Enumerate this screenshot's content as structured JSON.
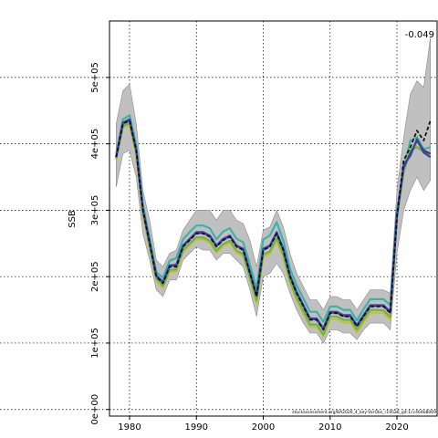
{
  "chart_data": {
    "type": "line",
    "title": "",
    "xlabel": "",
    "ylabel": "SSB",
    "xlim": [
      1977,
      2026
    ],
    "ylim": [
      -10000,
      585000
    ],
    "x_ticks": [
      1980,
      1990,
      2000,
      2010,
      2020
    ],
    "x_tick_labels": [
      "1980",
      "1990",
      "2000",
      "2010",
      "2020"
    ],
    "y_ticks": [
      0,
      100000,
      200000,
      300000,
      400000,
      500000
    ],
    "y_tick_labels": [
      "0e+00",
      "1e+05",
      "2e+05",
      "3e+05",
      "4e+05",
      "5e+05"
    ],
    "grid": true,
    "annotation": "-0.049",
    "footnote": "stockassessment.org/BA2026_4_key-VarObs_r19526_git:1cc464b8069",
    "colors": {
      "band": "#c0c0c0",
      "band_edge": "#8c8c8c",
      "teal": "#3db3a8",
      "yellow": "#c5c03a",
      "green": "#6fb348",
      "purple": "#4d2d7c",
      "blue": "#3a43a8",
      "black": "#111111",
      "grid": "#000000"
    },
    "years": [
      1978,
      1979,
      1980,
      1981,
      1982,
      1983,
      1984,
      1985,
      1986,
      1987,
      1988,
      1989,
      1990,
      1991,
      1992,
      1993,
      1994,
      1995,
      1996,
      1997,
      1998,
      1999,
      2000,
      2001,
      2002,
      2003,
      2004,
      2005,
      2006,
      2007,
      2008,
      2009,
      2010,
      2011,
      2012,
      2013,
      2014,
      2015,
      2016,
      2017,
      2018,
      2019,
      2020,
      2021,
      2022,
      2023,
      2024,
      2025
    ],
    "ci_upper": [
      430000,
      480000,
      490000,
      430000,
      330000,
      285000,
      225000,
      215000,
      235000,
      240000,
      270000,
      285000,
      300000,
      300000,
      300000,
      285000,
      300000,
      300000,
      285000,
      280000,
      255000,
      215000,
      270000,
      275000,
      300000,
      275000,
      235000,
      205000,
      185000,
      165000,
      165000,
      150000,
      170000,
      170000,
      165000,
      165000,
      150000,
      165000,
      180000,
      180000,
      180000,
      175000,
      330000,
      410000,
      475000,
      495000,
      485000,
      560000
    ],
    "ci_lower": [
      335000,
      385000,
      390000,
      350000,
      265000,
      225000,
      180000,
      170000,
      195000,
      195000,
      225000,
      235000,
      245000,
      240000,
      240000,
      225000,
      235000,
      235000,
      225000,
      215000,
      180000,
      140000,
      200000,
      205000,
      220000,
      205000,
      175000,
      150000,
      130000,
      115000,
      115000,
      100000,
      120000,
      120000,
      115000,
      115000,
      105000,
      120000,
      130000,
      130000,
      130000,
      120000,
      235000,
      300000,
      330000,
      350000,
      330000,
      345000
    ],
    "series": [
      {
        "key": "black",
        "color": "#111111",
        "dashed": true,
        "values": [
          380000,
          430000,
          435000,
          390000,
          300000,
          250000,
          200000,
          190000,
          215000,
          215000,
          245000,
          255000,
          265000,
          265000,
          260000,
          245000,
          255000,
          260000,
          245000,
          240000,
          205000,
          170000,
          240000,
          245000,
          265000,
          240000,
          200000,
          175000,
          155000,
          135000,
          135000,
          120000,
          145000,
          145000,
          140000,
          140000,
          125000,
          140000,
          155000,
          155000,
          155000,
          145000,
          290000,
          375000,
          395000,
          420000,
          405000,
          435000
        ]
      },
      {
        "key": "teal",
        "color": "#3db3a8",
        "dashed": false,
        "values": [
          385000,
          437000,
          443000,
          398000,
          308000,
          258000,
          207000,
          198000,
          224000,
          228000,
          256000,
          267000,
          277000,
          277000,
          273000,
          256000,
          268000,
          273000,
          257000,
          252000,
          218000,
          182000,
          256000,
          262000,
          282000,
          254000,
          212000,
          187000,
          167000,
          147000,
          147000,
          132000,
          155000,
          155000,
          150000,
          150000,
          134000,
          151000,
          166000,
          166000,
          166000,
          157000,
          300000,
          362000,
          405000,
          410000,
          392000,
          395000
        ]
      },
      {
        "key": "yellow",
        "color": "#c5c03a",
        "dashed": false,
        "values": [
          376000,
          425000,
          428000,
          383000,
          293000,
          243000,
          194000,
          183000,
          207000,
          208000,
          237000,
          247000,
          256000,
          256000,
          251000,
          236000,
          246000,
          251000,
          236000,
          231000,
          196000,
          160000,
          230000,
          234000,
          254000,
          229000,
          190000,
          164000,
          144000,
          124000,
          124000,
          110000,
          136000,
          136000,
          131000,
          131000,
          116000,
          131000,
          146000,
          146000,
          145000,
          135000,
          292000,
          360000,
          392000,
          400000,
          390000,
          385000
        ]
      },
      {
        "key": "green",
        "color": "#6fb348",
        "dashed": false,
        "values": [
          378000,
          427000,
          431000,
          386000,
          296000,
          246000,
          197000,
          186000,
          210000,
          211000,
          240000,
          250000,
          259000,
          259000,
          254000,
          239000,
          249000,
          254000,
          239000,
          234000,
          199000,
          164000,
          233000,
          238000,
          258000,
          233000,
          194000,
          168000,
          148000,
          128000,
          128000,
          113000,
          140000,
          140000,
          135000,
          135000,
          120000,
          135000,
          150000,
          150000,
          149000,
          139000,
          290000,
          358000,
          390000,
          395000,
          388000,
          380000
        ]
      },
      {
        "key": "purple",
        "color": "#4d2d7c",
        "dashed": false,
        "values": [
          380000,
          431000,
          436000,
          391000,
          301000,
          251000,
          201000,
          191000,
          216000,
          217000,
          246000,
          256000,
          266000,
          266000,
          261000,
          246000,
          256000,
          261000,
          246000,
          241000,
          206000,
          171000,
          241000,
          246000,
          266000,
          241000,
          201000,
          176000,
          156000,
          136000,
          136000,
          121000,
          146000,
          146000,
          141000,
          141000,
          126000,
          141000,
          156000,
          156000,
          156000,
          146000,
          292000,
          365000,
          385000,
          405000,
          390000,
          385000
        ]
      },
      {
        "key": "blue",
        "color": "#3a43a8",
        "dashed": false,
        "values": [
          381000,
          432000,
          437000,
          392000,
          302000,
          252000,
          202000,
          192000,
          217000,
          218000,
          247000,
          257000,
          267000,
          267000,
          262000,
          247000,
          257000,
          262000,
          247000,
          242000,
          207000,
          172000,
          242000,
          247000,
          267000,
          242000,
          202000,
          177000,
          157000,
          137000,
          137000,
          122000,
          147000,
          147000,
          142000,
          142000,
          127000,
          142000,
          157000,
          157000,
          157000,
          147000,
          292000,
          368000,
          382000,
          407000,
          387000,
          380000
        ]
      }
    ]
  }
}
